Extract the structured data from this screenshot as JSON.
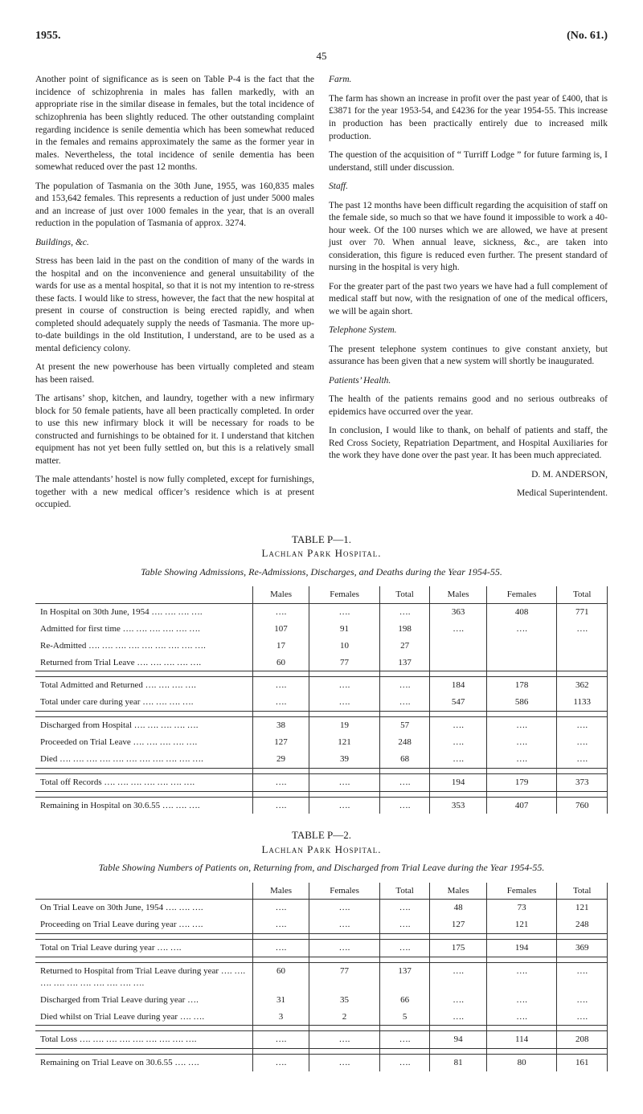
{
  "header": {
    "year": "1955.",
    "page": "45",
    "docno": "(No. 61.)"
  },
  "left": {
    "p1": "Another point of significance as is seen on Table P-4 is the fact that the incidence of schizophrenia in males has fallen markedly, with an appropriate rise in the similar disease in females, but the total incidence of schizophrenia has been slightly reduced. The other outstanding complaint regarding incidence is senile dementia which has been somewhat reduced in the females and remains approximately the same as the former year in males. Nevertheless, the total incidence of senile dementia has been somewhat reduced over the past 12 months.",
    "p2": "The population of Tasmania on the 30th June, 1955, was 160,835 males and 153,642 females. This represents a reduction of just under 5000 males and an increase of just over 1000 females in the year, that is an overall reduction in the population of Tasmania of approx. 3274.",
    "h1": "Buildings, &c.",
    "p3": "Stress has been laid in the past on the condition of many of the wards in the hospital and on the inconvenience and general unsuitability of the wards for use as a mental hospital, so that it is not my intention to re-stress these facts. I would like to stress, however, the fact that the new hospital at present in course of construction is being erected rapidly, and when completed should adequately supply the needs of Tasmania. The more up-to-date buildings in the old Institution, I understand, are to be used as a mental deficiency colony.",
    "p4": "At present the new powerhouse has been virtually completed and steam has been raised.",
    "p5": "The artisans’ shop, kitchen, and laundry, together with a new infirmary block for 50 female patients, have all been practically completed. In order to use this new infirmary block it will be necessary for roads to be constructed and furnishings to be obtained for it. I understand that kitchen equipment has not yet been fully settled on, but this is a relatively small matter.",
    "p6": "The male attendants’ hostel is now fully completed, except for furnishings, together with a new medical officer’s residence which is at present occupied."
  },
  "right": {
    "h1": "Farm.",
    "p1": "The farm has shown an increase in profit over the past year of £400, that is £3871 for the year 1953-54, and £4236 for the year 1954-55. This increase in production has been practically entirely due to increased milk production.",
    "p2": "The question of the acquisition of “ Turriff Lodge ” for future farming is, I understand, still under discussion.",
    "h2": "Staff.",
    "p3": "The past 12 months have been difficult regarding the acquisition of staff on the female side, so much so that we have found it impossible to work a 40-hour week. Of the 100 nurses which we are allowed, we have at present just over 70. When annual leave, sickness, &c., are taken into consideration, this figure is reduced even further. The present standard of nursing in the hospital is very high.",
    "p4": "For the greater part of the past two years we have had a full complement of medical staff but now, with the resignation of one of the medical officers, we will be again short.",
    "h3": "Telephone System.",
    "p5": "The present telephone system continues to give constant anxiety, but assurance has been given that a new system will shortly be inaugurated.",
    "h4": "Patients’ Health.",
    "p6": "The health of the patients remains good and no serious outbreaks of epidemics have occurred over the year.",
    "p7": "In conclusion, I would like to thank, on behalf of patients and staff, the Red Cross Society, Repatriation Department, and Hospital Auxiliaries for the work they have done over the past year. It has been much appreciated.",
    "sig1": "D. M. ANDERSON,",
    "sig2": "Medical Superintendent."
  },
  "table1": {
    "title": "TABLE P—1.",
    "sub": "Lachlan Park Hospital.",
    "caption": "Table Showing Admissions, Re-Admissions, Discharges, and Deaths during the Year 1954-55.",
    "headers": [
      "",
      "Males",
      "Females",
      "Total",
      "Males",
      "Females",
      "Total"
    ],
    "rows": [
      {
        "label": "In Hospital on 30th June, 1954 …. …. …. ….",
        "c": [
          "….",
          "….",
          "….",
          "363",
          "408",
          "771"
        ]
      },
      {
        "label": "Admitted for first time …. …. …. …. …. ….",
        "c": [
          "107",
          "91",
          "198",
          "….",
          "….",
          "…."
        ]
      },
      {
        "label": "Re-Admitted …. …. …. …. …. …. …. …. ….",
        "c": [
          "17",
          "10",
          "27",
          "",
          "",
          ""
        ]
      },
      {
        "label": "Returned from Trial Leave …. …. …. …. ….",
        "c": [
          "60",
          "77",
          "137",
          "",
          "",
          ""
        ]
      }
    ],
    "mid": [
      {
        "label": "Total Admitted and Returned …. …. …. ….",
        "c": [
          "….",
          "….",
          "….",
          "184",
          "178",
          "362"
        ]
      },
      {
        "label": "Total under care during year …. …. …. ….",
        "c": [
          "….",
          "….",
          "….",
          "547",
          "586",
          "1133"
        ]
      }
    ],
    "rows2": [
      {
        "label": "Discharged from Hospital …. …. …. …. ….",
        "c": [
          "38",
          "19",
          "57",
          "….",
          "….",
          "…."
        ]
      },
      {
        "label": "Proceeded on Trial Leave …. …. …. …. ….",
        "c": [
          "127",
          "121",
          "248",
          "….",
          "….",
          "…."
        ]
      },
      {
        "label": "Died …. …. …. …. …. …. …. …. …. …. ….",
        "c": [
          "29",
          "39",
          "68",
          "….",
          "….",
          "…."
        ]
      }
    ],
    "tot": {
      "label": "Total off Records …. …. …. …. …. …. ….",
      "c": [
        "….",
        "….",
        "….",
        "194",
        "179",
        "373"
      ]
    },
    "rem": {
      "label": "Remaining in Hospital on 30.6.55 …. …. ….",
      "c": [
        "….",
        "….",
        "….",
        "353",
        "407",
        "760"
      ]
    }
  },
  "table2": {
    "title": "TABLE P—2.",
    "sub": "Lachlan Park Hospital.",
    "caption": "Table Showing Numbers of Patients on, Returning from, and Discharged from Trial Leave during the Year 1954-55.",
    "headers": [
      "",
      "Males",
      "Females",
      "Total",
      "Males",
      "Females",
      "Total"
    ],
    "rows": [
      {
        "label": "On Trial Leave on 30th June, 1954 …. …. ….",
        "c": [
          "….",
          "….",
          "….",
          "48",
          "73",
          "121"
        ]
      },
      {
        "label": "Proceeding on Trial Leave during year …. ….",
        "c": [
          "….",
          "….",
          "….",
          "127",
          "121",
          "248"
        ]
      }
    ],
    "tot1": {
      "label": "Total on Trial Leave during year …. ….",
      "c": [
        "….",
        "….",
        "….",
        "175",
        "194",
        "369"
      ]
    },
    "rows2": [
      {
        "label": "Returned to Hospital from Trial Leave during year …. …. …. …. …. …. …. …. …. ….",
        "c": [
          "60",
          "77",
          "137",
          "….",
          "….",
          "…."
        ]
      },
      {
        "label": "Discharged from Trial Leave during year ….",
        "c": [
          "31",
          "35",
          "66",
          "….",
          "….",
          "…."
        ]
      },
      {
        "label": "Died whilst on Trial Leave during year …. ….",
        "c": [
          "3",
          "2",
          "5",
          "….",
          "….",
          "…."
        ]
      }
    ],
    "tot2": {
      "label": "Total Loss …. …. …. …. …. …. …. …. ….",
      "c": [
        "….",
        "….",
        "….",
        "94",
        "114",
        "208"
      ]
    },
    "rem": {
      "label": "Remaining on Trial Leave on 30.6.55 …. ….",
      "c": [
        "….",
        "….",
        "….",
        "81",
        "80",
        "161"
      ]
    }
  }
}
